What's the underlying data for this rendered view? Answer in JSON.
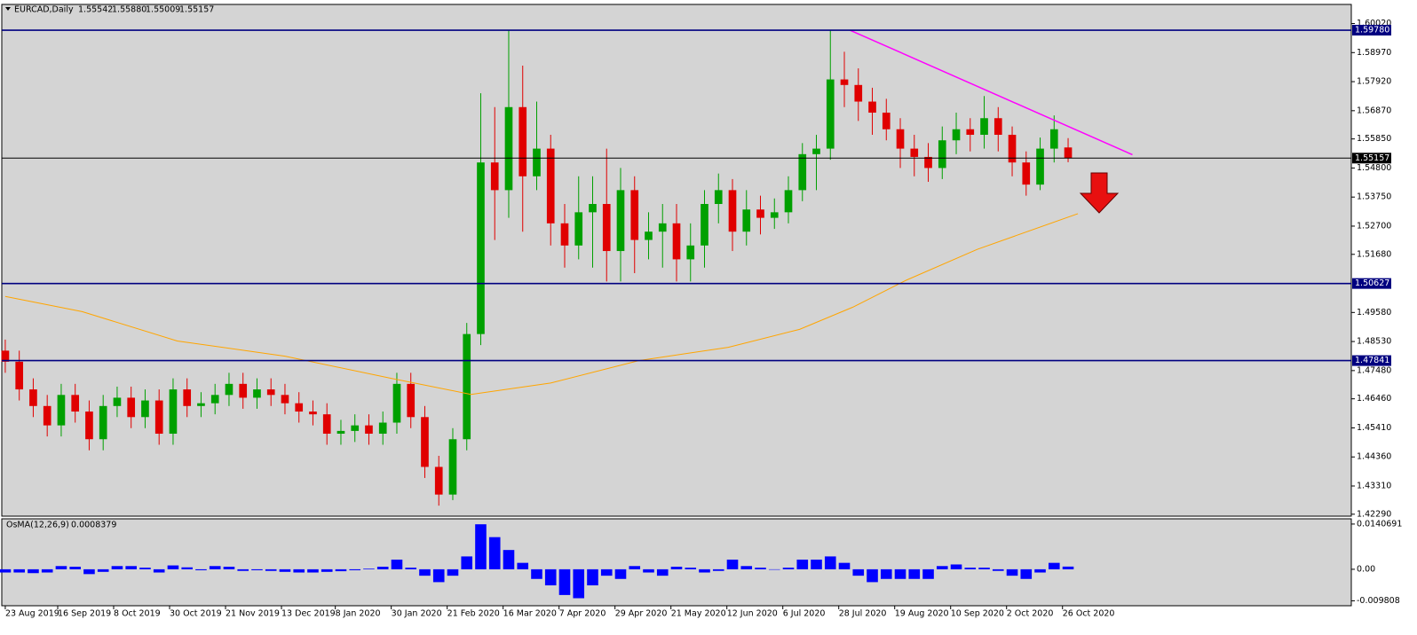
{
  "chart_data": [
    {
      "type": "candlestick",
      "title": "EURCAD,Daily",
      "quote": [
        "1.55542",
        "1.55880",
        "1.55009",
        "1.55157"
      ],
      "open": [
        1.482,
        1.478,
        1.468,
        1.462,
        1.455,
        1.466,
        1.46,
        1.45,
        1.462,
        1.465,
        1.458,
        1.464,
        1.452,
        1.468,
        1.462,
        1.463,
        1.466,
        1.47,
        1.465,
        1.468,
        1.466,
        1.463,
        1.46,
        1.459,
        1.452,
        1.453,
        1.455,
        1.452,
        1.456,
        1.47,
        1.458,
        1.44,
        1.43,
        1.45,
        1.488,
        1.55,
        1.54,
        1.57,
        1.545,
        1.555,
        1.528,
        1.52,
        1.532,
        1.535,
        1.518,
        1.54,
        1.522,
        1.525,
        1.528,
        1.515,
        1.52,
        1.535,
        1.54,
        1.525,
        1.533,
        1.53,
        1.532,
        1.54,
        1.553,
        1.555,
        1.58,
        1.578,
        1.572,
        1.568,
        1.562,
        1.555,
        1.552,
        1.548,
        1.558,
        1.562,
        1.56,
        1.566,
        1.56,
        1.55,
        1.542,
        1.555,
        1.55542
      ],
      "high": [
        1.486,
        1.482,
        1.472,
        1.466,
        1.47,
        1.47,
        1.464,
        1.466,
        1.469,
        1.469,
        1.468,
        1.468,
        1.472,
        1.472,
        1.467,
        1.47,
        1.474,
        1.474,
        1.472,
        1.472,
        1.47,
        1.467,
        1.464,
        1.463,
        1.457,
        1.459,
        1.459,
        1.46,
        1.474,
        1.474,
        1.462,
        1.444,
        1.454,
        1.492,
        1.575,
        1.57,
        1.5978,
        1.585,
        1.572,
        1.56,
        1.535,
        1.545,
        1.545,
        1.555,
        1.548,
        1.545,
        1.532,
        1.535,
        1.535,
        1.528,
        1.54,
        1.546,
        1.544,
        1.54,
        1.538,
        1.537,
        1.545,
        1.557,
        1.56,
        1.5978,
        1.59,
        1.584,
        1.577,
        1.573,
        1.566,
        1.56,
        1.557,
        1.563,
        1.568,
        1.566,
        1.574,
        1.57,
        1.563,
        1.554,
        1.559,
        1.567,
        1.5588
      ],
      "low": [
        1.474,
        1.464,
        1.458,
        1.451,
        1.451,
        1.456,
        1.446,
        1.446,
        1.458,
        1.454,
        1.454,
        1.448,
        1.448,
        1.458,
        1.458,
        1.459,
        1.462,
        1.461,
        1.461,
        1.462,
        1.459,
        1.456,
        1.455,
        1.448,
        1.448,
        1.449,
        1.448,
        1.448,
        1.452,
        1.454,
        1.436,
        1.426,
        1.428,
        1.446,
        1.484,
        1.522,
        1.53,
        1.525,
        1.54,
        1.52,
        1.512,
        1.515,
        1.512,
        1.507,
        1.507,
        1.51,
        1.515,
        1.512,
        1.507,
        1.507,
        1.512,
        1.528,
        1.518,
        1.52,
        1.524,
        1.526,
        1.528,
        1.536,
        1.54,
        1.551,
        1.57,
        1.565,
        1.56,
        1.558,
        1.548,
        1.545,
        1.543,
        1.544,
        1.553,
        1.554,
        1.555,
        1.554,
        1.545,
        1.538,
        1.54,
        1.55,
        1.55009
      ],
      "close": [
        1.478,
        1.468,
        1.462,
        1.455,
        1.466,
        1.46,
        1.45,
        1.462,
        1.465,
        1.458,
        1.464,
        1.452,
        1.468,
        1.462,
        1.463,
        1.466,
        1.47,
        1.465,
        1.468,
        1.466,
        1.463,
        1.46,
        1.459,
        1.452,
        1.453,
        1.455,
        1.452,
        1.456,
        1.47,
        1.458,
        1.44,
        1.43,
        1.45,
        1.488,
        1.55,
        1.54,
        1.57,
        1.545,
        1.555,
        1.528,
        1.52,
        1.532,
        1.535,
        1.518,
        1.54,
        1.522,
        1.525,
        1.528,
        1.515,
        1.52,
        1.535,
        1.54,
        1.525,
        1.533,
        1.53,
        1.532,
        1.54,
        1.553,
        1.555,
        1.58,
        1.578,
        1.572,
        1.568,
        1.562,
        1.555,
        1.552,
        1.548,
        1.558,
        1.562,
        1.56,
        1.566,
        1.56,
        1.55,
        1.542,
        1.555,
        1.562,
        1.55157
      ],
      "up_color": "#00a000",
      "down_color": "#e00000",
      "xlim": [
        -0.25,
        96.25
      ],
      "xticks": [
        {
          "value": 0,
          "label": "23 Aug 2019"
        },
        {
          "value": 3.75,
          "label": "16 Sep 2019"
        },
        {
          "value": 7.75,
          "label": "8 Oct 2019"
        },
        {
          "value": 11.75,
          "label": "30 Oct 2019"
        },
        {
          "value": 15.75,
          "label": "21 Nov 2019"
        },
        {
          "value": 19.75,
          "label": "13 Dec 2019"
        },
        {
          "value": 23.6,
          "label": "8 Jan 2020"
        },
        {
          "value": 27.6,
          "label": "30 Jan 2020"
        },
        {
          "value": 31.6,
          "label": "21 Feb 2020"
        },
        {
          "value": 35.6,
          "label": "16 Mar 2020"
        },
        {
          "value": 39.6,
          "label": "7 Apr 2020"
        },
        {
          "value": 43.6,
          "label": "29 Apr 2020"
        },
        {
          "value": 47.6,
          "label": "21 May 2020"
        },
        {
          "value": 51.6,
          "label": "12 Jun 2020"
        },
        {
          "value": 55.6,
          "label": "6 Jul 2020"
        },
        {
          "value": 59.6,
          "label": "28 Jul 2020"
        },
        {
          "value": 63.6,
          "label": "19 Aug 2020"
        },
        {
          "value": 67.6,
          "label": "10 Sep 2020"
        },
        {
          "value": 71.6,
          "label": "2 Oct 2020"
        },
        {
          "value": 75.6,
          "label": "26 Oct 2020"
        }
      ],
      "ylim": [
        1.4222,
        1.6071
      ],
      "yticks": [
        {
          "value": 1.4229,
          "label": "1.42290"
        },
        {
          "value": 1.4331,
          "label": "1.43310"
        },
        {
          "value": 1.4436,
          "label": "1.44360"
        },
        {
          "value": 1.4541,
          "label": "1.45410"
        },
        {
          "value": 1.4646,
          "label": "1.46460"
        },
        {
          "value": 1.4748,
          "label": "1.47480"
        },
        {
          "value": 1.4853,
          "label": "1.48530"
        },
        {
          "value": 1.4958,
          "label": "1.49580"
        },
        {
          "value": 1.5168,
          "label": "1.51680"
        },
        {
          "value": 1.527,
          "label": "1.52700"
        },
        {
          "value": 1.5375,
          "label": "1.53750"
        },
        {
          "value": 1.548,
          "label": "1.54800"
        },
        {
          "value": 1.5585,
          "label": "1.55850"
        },
        {
          "value": 1.5687,
          "label": "1.56870"
        },
        {
          "value": 1.5792,
          "label": "1.57920"
        },
        {
          "value": 1.5897,
          "label": "1.58970"
        },
        {
          "value": 1.6002,
          "label": "1.60020"
        }
      ],
      "levels": [
        {
          "value": 1.5978,
          "label": "1.59780",
          "color": "#000080"
        },
        {
          "value": 1.50627,
          "label": "1.50627",
          "color": "#000080"
        },
        {
          "value": 1.47841,
          "label": "1.47841",
          "color": "#000080"
        },
        {
          "value": 1.55157,
          "label": "1.55157",
          "color": "#000000"
        }
      ],
      "ma": {
        "color": "#ffa500",
        "x": [
          0,
          5.5,
          12.3,
          20,
          27.6,
          33.3,
          39,
          45.3,
          51.7,
          56.8,
          60.6,
          64.4,
          69.5,
          76.7
        ],
        "values": [
          1.5016,
          1.4961,
          1.4855,
          1.48,
          1.472,
          1.4662,
          1.4703,
          1.4784,
          1.4832,
          1.4897,
          1.4977,
          1.5074,
          1.5186,
          1.5315
        ]
      },
      "trendline": {
        "color": "#ff00ff",
        "x": [
          60.4,
          80.6
        ],
        "values": [
          1.5978,
          1.5528
        ]
      }
    },
    {
      "type": "bar",
      "title": "OsMA(12,26,9)",
      "color": "#0000ff",
      "values": [
        -0.001,
        -0.001,
        -0.0012,
        -0.001,
        0.001,
        0.0008,
        -0.0015,
        -0.0008,
        0.001,
        0.001,
        0.0005,
        -0.001,
        0.0012,
        0.0006,
        -0.0003,
        0.001,
        0.0008,
        -0.0005,
        -0.0003,
        -0.0005,
        -0.0008,
        -0.001,
        -0.001,
        -0.0008,
        -0.0006,
        -0.0003,
        0.0002,
        0.0008,
        0.003,
        0.0005,
        -0.002,
        -0.004,
        -0.002,
        0.004,
        0.014,
        0.01,
        0.006,
        0.002,
        -0.003,
        -0.005,
        -0.008,
        -0.009,
        -0.005,
        -0.002,
        -0.003,
        0.001,
        -0.001,
        -0.002,
        0.0008,
        0.0005,
        -0.001,
        -0.0005,
        0.003,
        0.001,
        0.0005,
        0,
        0.0005,
        0.003,
        0.003,
        0.004,
        0.002,
        -0.002,
        -0.004,
        -0.003,
        -0.003,
        -0.003,
        -0.003,
        0.001,
        0.0015,
        0.0005,
        0.0005,
        -0.0005,
        -0.002,
        -0.003,
        -0.001,
        0.002,
        0.0008379
      ],
      "ylim": [
        -0.01134,
        0.0157
      ],
      "yticks": [
        0.0140691,
        {
          "value": 0,
          "label": "0.00"
        },
        -0.009808
      ]
    }
  ]
}
